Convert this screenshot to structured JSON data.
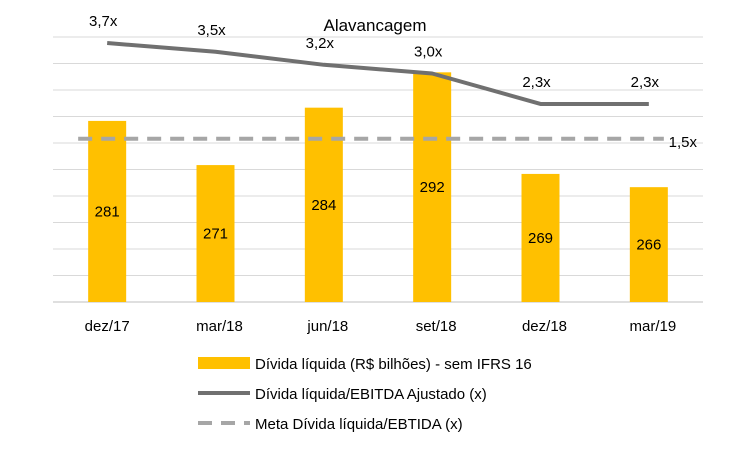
{
  "chart_data": {
    "type": "bar",
    "title": "Alavancagem",
    "categories": [
      "dez/17",
      "mar/18",
      "jun/18",
      "set/18",
      "dez/18",
      "mar/19"
    ],
    "series": [
      {
        "name": "Dívida líquida (R$ bilhões) - sem IFRS 16",
        "type": "bar",
        "axis": "primary",
        "values": [
          281,
          271,
          284,
          292,
          269,
          266
        ],
        "labels": [
          "281",
          "271",
          "284",
          "292",
          "269",
          "266"
        ],
        "color": "#FFC000"
      },
      {
        "name": "Dívida líquida/EBITDA Ajustado (x)",
        "type": "line",
        "axis": "secondary",
        "values": [
          3.7,
          3.5,
          3.2,
          3.0,
          2.3,
          2.3
        ],
        "labels": [
          "3,7x",
          "3,5x",
          "3,2x",
          "3,0x",
          "2,3x",
          "2,3x"
        ],
        "color": "#707070"
      },
      {
        "name": "Meta Dívida líquida/EBTIDA (x)",
        "type": "line",
        "style": "dashed",
        "axis": "secondary",
        "values": [
          1.5,
          1.5,
          1.5,
          1.5,
          1.5,
          1.5
        ],
        "labels": [
          "",
          "",
          "",
          "",
          "",
          "1,5x"
        ],
        "color": "#A6A6A6"
      }
    ],
    "ylim": [
      240,
      300
    ],
    "y2lim": [
      0,
      4
    ],
    "grid": true,
    "legend": "bottom"
  }
}
